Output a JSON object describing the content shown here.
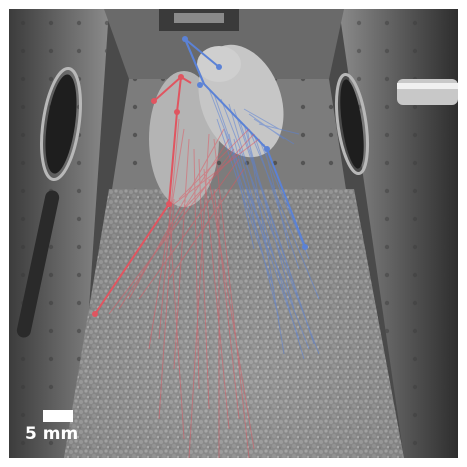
{
  "scale_bar": {
    "label": "5 mm"
  },
  "colors": {
    "left_track": "#e05560",
    "right_track": "#5b82d6",
    "background": "#5a5a5a"
  },
  "description_icons": [
    "mouse-photo",
    "pose-track-overlay"
  ]
}
